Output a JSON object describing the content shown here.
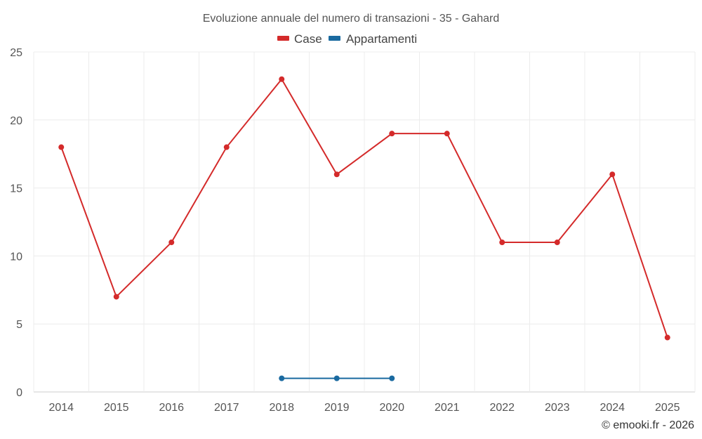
{
  "chart_data": {
    "type": "line",
    "title": "Evoluzione annuale del numero di transazioni - 35 - Gahard",
    "categories": [
      "2014",
      "2015",
      "2016",
      "2017",
      "2018",
      "2019",
      "2020",
      "2021",
      "2022",
      "2023",
      "2024",
      "2025"
    ],
    "series": [
      {
        "name": "Case",
        "color": "#d42a2a",
        "values": [
          18,
          7,
          11,
          18,
          23,
          16,
          19,
          19,
          11,
          11,
          16,
          4
        ]
      },
      {
        "name": "Appartamenti",
        "color": "#1a6aa0",
        "values": [
          null,
          null,
          null,
          null,
          1,
          1,
          1,
          null,
          null,
          null,
          null,
          null
        ]
      }
    ],
    "ylim": [
      0,
      25
    ],
    "yticks": [
      0,
      5,
      10,
      15,
      20,
      25
    ],
    "grid": true,
    "legend": "top-center",
    "xlabel": "",
    "ylabel": ""
  },
  "credit": "© emooki.fr - 2026"
}
